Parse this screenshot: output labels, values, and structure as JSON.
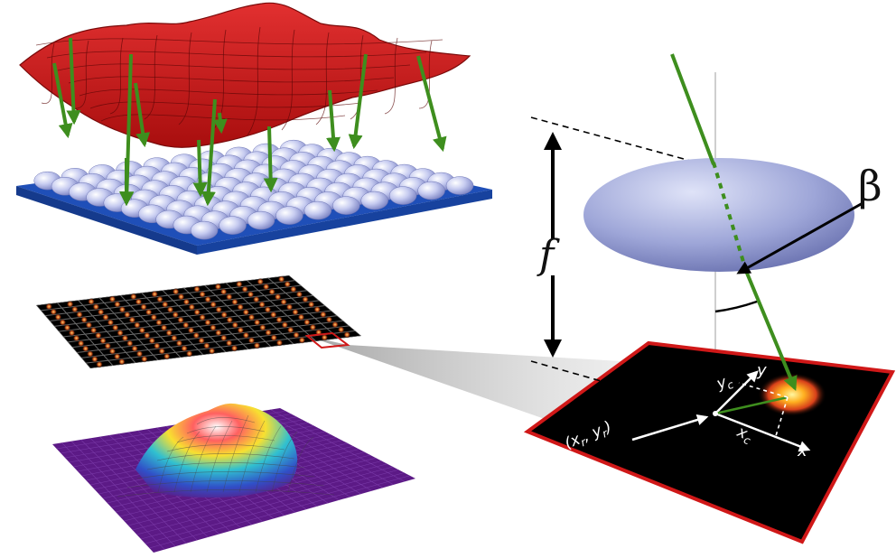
{
  "labels": {
    "focal": "f",
    "angle": "β",
    "coord": "(x",
    "coord_sub_x": "r",
    "coord_mid": ", y",
    "coord_sub_y": "r",
    "coord_end": ")",
    "axis_x": "x",
    "axis_y": "y",
    "yc": "y",
    "yc_sub": "c",
    "xc": "x",
    "xc_sub": "c"
  },
  "colors": {
    "wavefront": "#cc1818",
    "arrow": "#3e8e1e",
    "lenslet_substrate": "#1f4fb8",
    "lens": "#9aa3d6",
    "sensor": "#000000",
    "sensor_border": "#d01818",
    "surface_base": "#5c1a86"
  }
}
